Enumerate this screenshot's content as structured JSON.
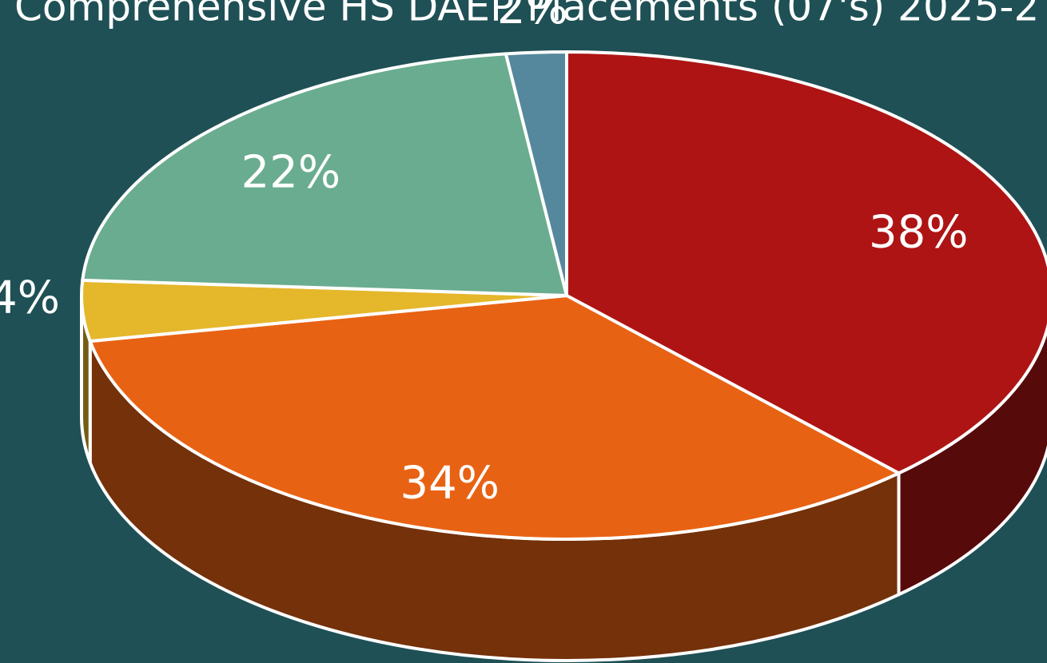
{
  "chart_data": {
    "type": "pie",
    "title": "Comprehensive HS DAEP Placements (07's) 2025-2",
    "values": [
      38,
      34,
      4,
      22,
      2
    ],
    "value_labels": [
      "38%",
      "34%",
      "4%",
      "22%",
      "2%"
    ],
    "colors": [
      "#ae1414",
      "#e86213",
      "#e5b72b",
      "#6aac8f",
      "#55889c"
    ],
    "three_d": true
  }
}
